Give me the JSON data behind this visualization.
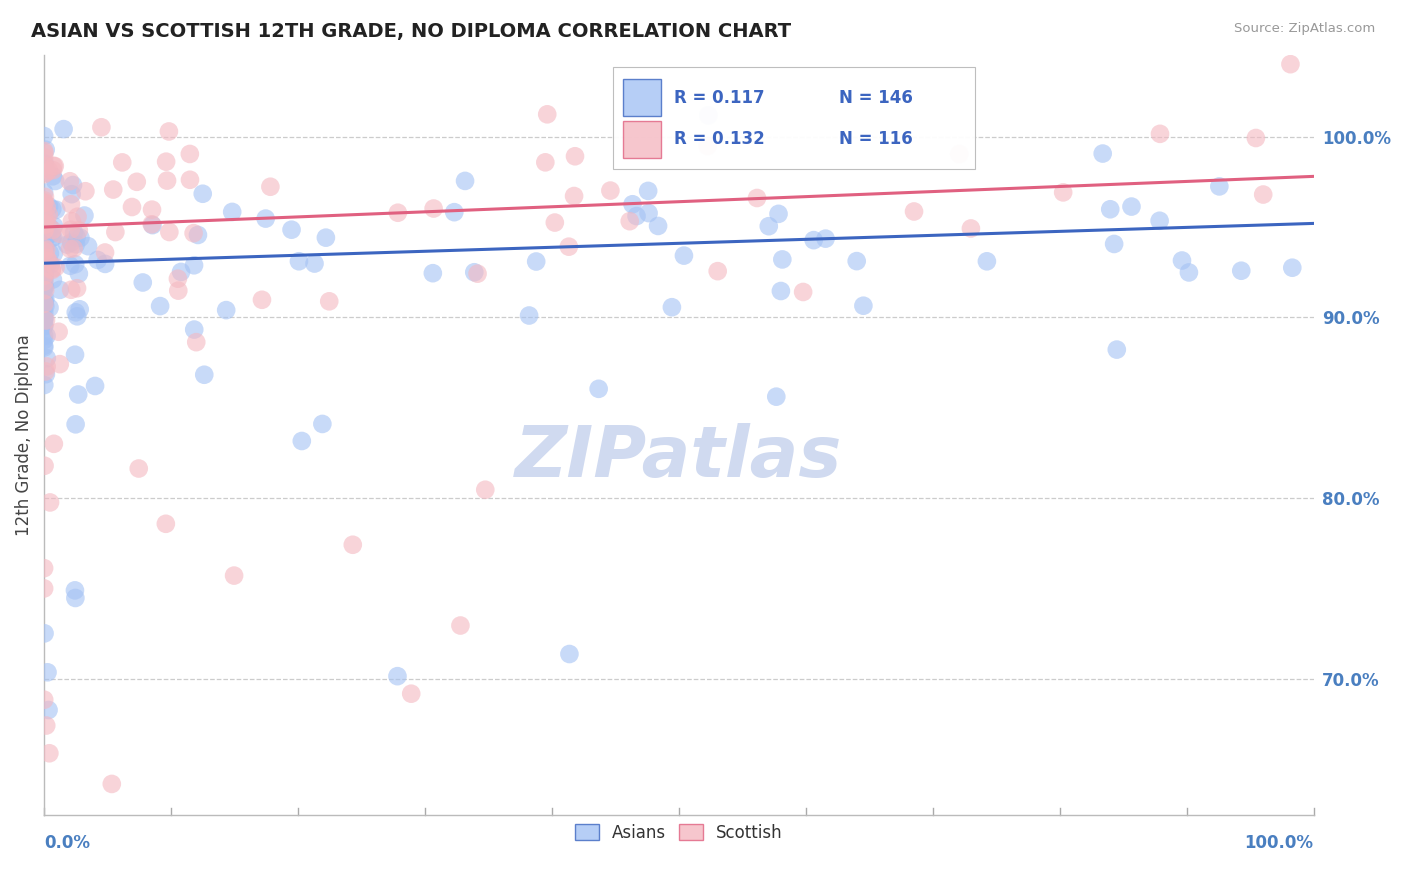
{
  "title": "ASIAN VS SCOTTISH 12TH GRADE, NO DIPLOMA CORRELATION CHART",
  "source": "Source: ZipAtlas.com",
  "ylabel": "12th Grade, No Diploma",
  "ytick_values": [
    0.7,
    0.8,
    0.9,
    1.0
  ],
  "xlim": [
    0.0,
    1.0
  ],
  "ylim": [
    0.625,
    1.045
  ],
  "legend_blue_r": "R = 0.117",
  "legend_blue_n": "N = 146",
  "legend_pink_r": "R = 0.132",
  "legend_pink_n": "N = 116",
  "blue_scatter_color": "#a4c2f4",
  "pink_scatter_color": "#f4b8c1",
  "blue_line_color": "#3c65c0",
  "pink_line_color": "#e06080",
  "watermark_color": "#d0daf0",
  "blue_trend_x0": 0.0,
  "blue_trend_y0": 0.93,
  "blue_trend_x1": 1.0,
  "blue_trend_y1": 0.952,
  "pink_trend_x0": 0.0,
  "pink_trend_y0": 0.95,
  "pink_trend_x1": 1.0,
  "pink_trend_y1": 0.978
}
